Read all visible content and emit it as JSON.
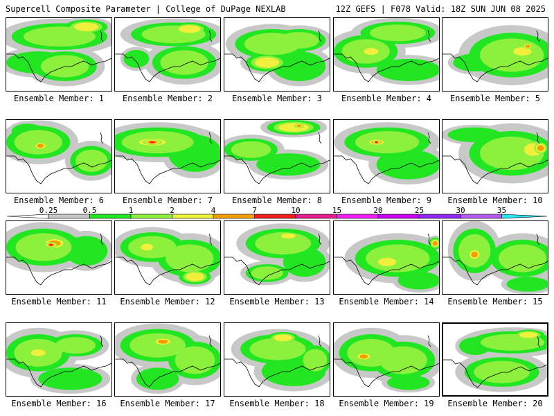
{
  "header": {
    "left": "Supercell Composite Parameter | College of DuPage NEXLAB",
    "right": "12Z GEFS | F078 Valid: 18Z SUN JUN 08 2025"
  },
  "member_label_prefix": "Ensemble Member: ",
  "members": [
    {
      "label": "Ensemble Member: 1",
      "peak": 4,
      "blobs": [
        [
          0.5,
          0.25,
          0.45,
          0.18,
          2
        ],
        [
          0.75,
          0.12,
          0.2,
          0.1,
          4
        ],
        [
          0.3,
          0.6,
          0.3,
          0.15,
          1
        ],
        [
          0.55,
          0.65,
          0.3,
          0.2,
          2
        ]
      ]
    },
    {
      "label": "Ensemble Member: 2",
      "peak": 4,
      "blobs": [
        [
          0.55,
          0.22,
          0.4,
          0.16,
          2
        ],
        [
          0.7,
          0.15,
          0.18,
          0.09,
          4
        ],
        [
          0.2,
          0.55,
          0.12,
          0.12,
          1
        ],
        [
          0.65,
          0.6,
          0.3,
          0.22,
          2
        ]
      ]
    },
    {
      "label": "Ensemble Member: 3",
      "peak": 4,
      "blobs": [
        [
          0.45,
          0.35,
          0.35,
          0.2,
          2
        ],
        [
          0.7,
          0.3,
          0.25,
          0.15,
          2
        ],
        [
          0.4,
          0.6,
          0.2,
          0.12,
          4
        ],
        [
          0.7,
          0.65,
          0.25,
          0.2,
          1
        ]
      ]
    },
    {
      "label": "Ensemble Member: 4",
      "peak": 4,
      "blobs": [
        [
          0.3,
          0.45,
          0.3,
          0.22,
          2
        ],
        [
          0.35,
          0.45,
          0.12,
          0.08,
          4
        ],
        [
          0.6,
          0.2,
          0.35,
          0.15,
          2
        ],
        [
          0.7,
          0.7,
          0.3,
          0.15,
          1
        ]
      ]
    },
    {
      "label": "Ensemble Member: 5",
      "peak": 7,
      "blobs": [
        [
          0.65,
          0.5,
          0.4,
          0.3,
          2
        ],
        [
          0.75,
          0.45,
          0.15,
          0.1,
          4
        ],
        [
          0.8,
          0.38,
          0.06,
          0.05,
          7
        ],
        [
          0.3,
          0.6,
          0.2,
          0.12,
          1
        ]
      ]
    },
    {
      "label": "Ensemble Member: 6",
      "peak": 7,
      "blobs": [
        [
          0.3,
          0.3,
          0.3,
          0.22,
          2
        ],
        [
          0.32,
          0.35,
          0.08,
          0.07,
          7
        ],
        [
          0.8,
          0.55,
          0.2,
          0.2,
          2
        ],
        [
          0.2,
          0.15,
          0.15,
          0.1,
          1
        ]
      ]
    },
    {
      "label": "Ensemble Member: 7",
      "peak": 10,
      "blobs": [
        [
          0.4,
          0.3,
          0.45,
          0.2,
          2
        ],
        [
          0.35,
          0.3,
          0.22,
          0.08,
          7
        ],
        [
          0.35,
          0.3,
          0.12,
          0.05,
          10
        ],
        [
          0.75,
          0.45,
          0.25,
          0.25,
          1
        ]
      ]
    },
    {
      "label": "Ensemble Member: 8",
      "peak": 7,
      "blobs": [
        [
          0.25,
          0.4,
          0.25,
          0.15,
          2
        ],
        [
          0.65,
          0.1,
          0.25,
          0.1,
          4
        ],
        [
          0.7,
          0.08,
          0.06,
          0.04,
          7
        ],
        [
          0.6,
          0.6,
          0.3,
          0.15,
          1
        ]
      ]
    },
    {
      "label": "Ensemble Member: 9",
      "peak": 10,
      "blobs": [
        [
          0.5,
          0.3,
          0.4,
          0.2,
          2
        ],
        [
          0.4,
          0.3,
          0.12,
          0.06,
          7
        ],
        [
          0.4,
          0.3,
          0.05,
          0.03,
          10
        ],
        [
          0.7,
          0.6,
          0.3,
          0.2,
          1
        ]
      ]
    },
    {
      "label": "Ensemble Member: 10",
      "peak": 7,
      "blobs": [
        [
          0.65,
          0.45,
          0.4,
          0.3,
          2
        ],
        [
          0.85,
          0.4,
          0.15,
          0.15,
          4
        ],
        [
          0.92,
          0.38,
          0.08,
          0.1,
          7
        ],
        [
          0.3,
          0.2,
          0.25,
          0.1,
          1
        ]
      ]
    },
    {
      "label": "Ensemble Member: 11",
      "peak": 10,
      "blobs": [
        [
          0.35,
          0.35,
          0.35,
          0.25,
          2
        ],
        [
          0.45,
          0.3,
          0.15,
          0.1,
          7
        ],
        [
          0.42,
          0.32,
          0.08,
          0.05,
          10
        ],
        [
          0.75,
          0.4,
          0.2,
          0.2,
          1
        ]
      ]
    },
    {
      "label": "Ensemble Member: 12",
      "peak": 4,
      "blobs": [
        [
          0.35,
          0.35,
          0.3,
          0.2,
          2
        ],
        [
          0.3,
          0.35,
          0.1,
          0.08,
          4
        ],
        [
          0.7,
          0.5,
          0.3,
          0.25,
          2
        ],
        [
          0.75,
          0.75,
          0.15,
          0.1,
          4
        ]
      ]
    },
    {
      "label": "Ensemble Member: 13",
      "peak": 4,
      "blobs": [
        [
          0.55,
          0.3,
          0.35,
          0.2,
          2
        ],
        [
          0.6,
          0.2,
          0.12,
          0.06,
          4
        ],
        [
          0.75,
          0.55,
          0.2,
          0.2,
          1
        ],
        [
          0.4,
          0.7,
          0.2,
          0.12,
          2
        ]
      ]
    },
    {
      "label": "Ensemble Member: 14",
      "peak": 7,
      "blobs": [
        [
          0.6,
          0.5,
          0.4,
          0.25,
          2
        ],
        [
          0.5,
          0.55,
          0.15,
          0.1,
          4
        ],
        [
          0.95,
          0.3,
          0.06,
          0.08,
          7
        ],
        [
          0.8,
          0.8,
          0.2,
          0.12,
          1
        ]
      ]
    },
    {
      "label": "Ensemble Member: 15",
      "peak": 7,
      "blobs": [
        [
          0.3,
          0.4,
          0.2,
          0.3,
          2
        ],
        [
          0.3,
          0.45,
          0.08,
          0.1,
          7
        ],
        [
          0.75,
          0.5,
          0.3,
          0.25,
          2
        ],
        [
          0.8,
          0.85,
          0.2,
          0.1,
          1
        ]
      ]
    },
    {
      "label": "Ensemble Member: 16",
      "peak": 4,
      "blobs": [
        [
          0.3,
          0.4,
          0.3,
          0.25,
          2
        ],
        [
          0.3,
          0.4,
          0.12,
          0.08,
          4
        ],
        [
          0.65,
          0.3,
          0.25,
          0.15,
          2
        ],
        [
          0.6,
          0.75,
          0.3,
          0.15,
          1
        ]
      ]
    },
    {
      "label": "Ensemble Member: 17",
      "peak": 7,
      "blobs": [
        [
          0.4,
          0.3,
          0.35,
          0.22,
          2
        ],
        [
          0.45,
          0.25,
          0.12,
          0.07,
          7
        ],
        [
          0.75,
          0.5,
          0.25,
          0.25,
          2
        ],
        [
          0.4,
          0.75,
          0.2,
          0.15,
          1
        ]
      ]
    },
    {
      "label": "Ensemble Member: 18",
      "peak": 4,
      "blobs": [
        [
          0.5,
          0.35,
          0.35,
          0.2,
          2
        ],
        [
          0.55,
          0.2,
          0.15,
          0.08,
          4
        ],
        [
          0.65,
          0.65,
          0.3,
          0.2,
          1
        ],
        [
          0.85,
          0.5,
          0.15,
          0.2,
          2
        ]
      ]
    },
    {
      "label": "Ensemble Member: 19",
      "peak": 7,
      "blobs": [
        [
          0.35,
          0.4,
          0.3,
          0.25,
          2
        ],
        [
          0.28,
          0.45,
          0.1,
          0.07,
          7
        ],
        [
          0.65,
          0.5,
          0.3,
          0.25,
          2
        ],
        [
          0.7,
          0.8,
          0.2,
          0.1,
          1
        ]
      ]
    },
    {
      "label": "Ensemble Member: 20",
      "peak": 4,
      "blobs": [
        [
          0.65,
          0.25,
          0.4,
          0.15,
          2
        ],
        [
          0.8,
          0.15,
          0.15,
          0.07,
          4
        ],
        [
          0.55,
          0.65,
          0.35,
          0.2,
          2
        ],
        [
          0.3,
          0.3,
          0.15,
          0.12,
          1
        ]
      ]
    }
  ],
  "selected_member": 20,
  "colorbar": {
    "levels": [
      "0.25",
      "0.5",
      "1",
      "2",
      "4",
      "7",
      "10",
      "15",
      "20",
      "25",
      "30",
      "35"
    ],
    "colors": [
      "#c8c8c8",
      "#22e622",
      "#8cf03c",
      "#f0f03c",
      "#f0a000",
      "#f01e1e",
      "#e61e8c",
      "#f01ef0",
      "#c800f0",
      "#8c28f0",
      "#b45af0",
      "#28e6f0"
    ],
    "min_color": "#ffffff",
    "max_color": "#28e6f0"
  },
  "contour_colors": {
    "1": "#22e622",
    "2": "#8cf03c",
    "4": "#f0f03c",
    "7": "#f0a000",
    "10": "#f01e1e"
  },
  "background_color": "#c8c8c8"
}
